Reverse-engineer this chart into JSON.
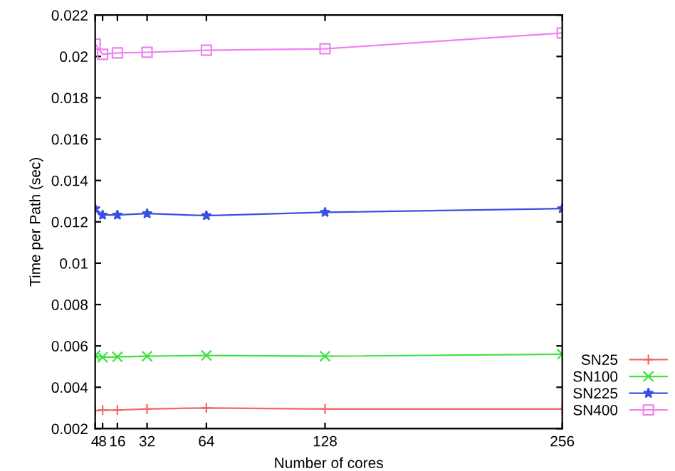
{
  "chart_data": {
    "type": "line",
    "xlabel": "Number of cores",
    "ylabel": "Time per Path (sec)",
    "x": [
      4,
      8,
      16,
      32,
      64,
      128,
      256
    ],
    "series": [
      {
        "name": "SN25",
        "color": "#f06868",
        "marker": "cross",
        "values": [
          0.00287,
          0.0029,
          0.0029,
          0.00295,
          0.003,
          0.00295,
          0.00295
        ]
      },
      {
        "name": "SN100",
        "color": "#40e040",
        "marker": "x",
        "values": [
          0.00554,
          0.00545,
          0.00547,
          0.0055,
          0.00554,
          0.0055,
          0.0056
        ]
      },
      {
        "name": "SN225",
        "color": "#3a50e0",
        "marker": "star",
        "values": [
          0.01264,
          0.01233,
          0.01233,
          0.0124,
          0.0123,
          0.01246,
          0.01264
        ]
      },
      {
        "name": "SN400",
        "color": "#f080f0",
        "marker": "square",
        "values": [
          0.0206,
          0.0201,
          0.02017,
          0.0202,
          0.0203,
          0.02037,
          0.02113
        ]
      }
    ],
    "xlim": [
      4,
      256
    ],
    "xticks": [
      4,
      8,
      16,
      32,
      64,
      128,
      256
    ],
    "ylim": [
      0.002,
      0.022
    ],
    "yticks": [
      0.002,
      0.004,
      0.006,
      0.008,
      0.01,
      0.012,
      0.014,
      0.016,
      0.018,
      0.02,
      0.022
    ],
    "legend": "bottom right",
    "grid": false,
    "line_style": "solid"
  }
}
